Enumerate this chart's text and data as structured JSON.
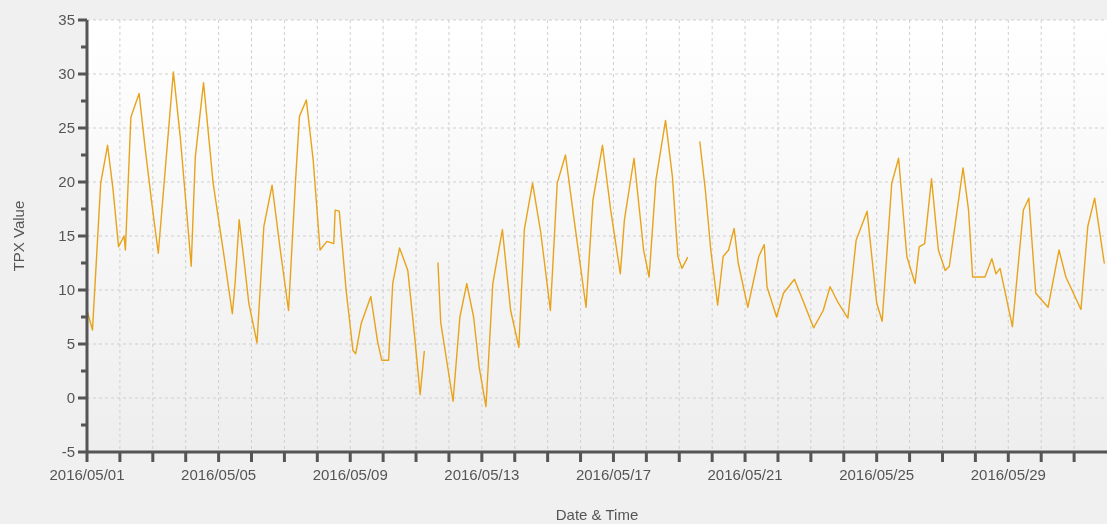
{
  "chart_data": {
    "type": "line",
    "xlabel": "Date & Time",
    "ylabel": "TPX Value",
    "xlim": [
      "2016-05-01",
      "2016-06-01"
    ],
    "xticks": [
      {
        "value": "2016-05-01",
        "label": "2016/05/01"
      },
      {
        "value": "2016-05-02",
        "label": null
      },
      {
        "value": "2016-05-03",
        "label": null
      },
      {
        "value": "2016-05-04",
        "label": null
      },
      {
        "value": "2016-05-05",
        "label": "2016/05/05"
      },
      {
        "value": "2016-05-06",
        "label": null
      },
      {
        "value": "2016-05-07",
        "label": null
      },
      {
        "value": "2016-05-08",
        "label": null
      },
      {
        "value": "2016-05-09",
        "label": "2016/05/09"
      },
      {
        "value": "2016-05-10",
        "label": null
      },
      {
        "value": "2016-05-11",
        "label": null
      },
      {
        "value": "2016-05-12",
        "label": null
      },
      {
        "value": "2016-05-13",
        "label": "2016/05/13"
      },
      {
        "value": "2016-05-14",
        "label": null
      },
      {
        "value": "2016-05-15",
        "label": null
      },
      {
        "value": "2016-05-16",
        "label": null
      },
      {
        "value": "2016-05-17",
        "label": "2016/05/17"
      },
      {
        "value": "2016-05-18",
        "label": null
      },
      {
        "value": "2016-05-19",
        "label": null
      },
      {
        "value": "2016-05-20",
        "label": null
      },
      {
        "value": "2016-05-21",
        "label": "2016/05/21"
      },
      {
        "value": "2016-05-22",
        "label": null
      },
      {
        "value": "2016-05-23",
        "label": null
      },
      {
        "value": "2016-05-24",
        "label": null
      },
      {
        "value": "2016-05-25",
        "label": "2016/05/25"
      },
      {
        "value": "2016-05-26",
        "label": null
      },
      {
        "value": "2016-05-27",
        "label": null
      },
      {
        "value": "2016-05-28",
        "label": null
      },
      {
        "value": "2016-05-29",
        "label": "2016/05/29"
      },
      {
        "value": "2016-05-30",
        "label": null
      },
      {
        "value": "2016-05-31",
        "label": null
      }
    ],
    "ylim": [
      -5,
      35
    ],
    "yticks": [
      -5,
      {
        "value": -2.5,
        "label": null
      },
      0,
      {
        "value": 2.5,
        "label": null
      },
      5,
      {
        "value": 7.5,
        "label": null
      },
      10,
      {
        "value": 12.5,
        "label": null
      },
      15,
      {
        "value": 17.5,
        "label": null
      },
      20,
      {
        "value": 22.5,
        "label": null
      },
      25,
      {
        "value": 27.5,
        "label": null
      },
      30,
      {
        "value": 32.5,
        "label": null
      },
      35
    ],
    "grid": true,
    "line_style": "solid",
    "marker": "none",
    "x": [
      "2016-05-01T00:00",
      "2016-05-01T04:00",
      "2016-05-01T10:00",
      "2016-05-01T15:00",
      "2016-05-01T19:00",
      "2016-05-01T23:00",
      "2016-05-02T03:00",
      "2016-05-02T04:00",
      "2016-05-02T08:00",
      "2016-05-02T14:00",
      "2016-05-02T18:00",
      "2016-05-02T23:00",
      "2016-05-03T04:00",
      "2016-05-03T15:00",
      "2016-05-03T20:00",
      "2016-05-04T01:00",
      "2016-05-04T04:00",
      "2016-05-04T07:00",
      "2016-05-04T13:00",
      "2016-05-04T20:00",
      "2016-05-05T04:00",
      "2016-05-05T10:00",
      "2016-05-05T12:00",
      "2016-05-05T15:00",
      "2016-05-05T19:00",
      "2016-05-05T22:00",
      "2016-05-06T04:00",
      "2016-05-06T09:00",
      "2016-05-06T15:00",
      "2016-05-06T21:00",
      "2016-05-07T03:00",
      "2016-05-07T08:00",
      "2016-05-07T11:00",
      "2016-05-07T16:00",
      "2016-05-07T21:00",
      "2016-05-08T02:00",
      "2016-05-08T07:00",
      "2016-05-08T12:00",
      "2016-05-08T13:00",
      "2016-05-08T16:00",
      "2016-05-08T21:00",
      "2016-05-09T02:00",
      "2016-05-09T04:00",
      "2016-05-09T08:00",
      "2016-05-09T15:00",
      "2016-05-09T20:00",
      "2016-05-09T23:00",
      "2016-05-10T04:00",
      "2016-05-10T07:00",
      "2016-05-10T12:00",
      "2016-05-10T18:00",
      "2016-05-10T23:00",
      "2016-05-11T03:00",
      "2016-05-11T06:00",
      "2016-05-11T10:00",
      "2016-05-11T16:00",
      "2016-05-11T18:00",
      "2016-05-12T03:00",
      "2016-05-12T08:00",
      "2016-05-12T13:00",
      "2016-05-12T18:00",
      "2016-05-12T22:00",
      "2016-05-13T03:00",
      "2016-05-13T08:00",
      "2016-05-13T15:00",
      "2016-05-13T19:00",
      "2016-05-13T21:00",
      "2016-05-14T03:00",
      "2016-05-14T07:00",
      "2016-05-14T13:00",
      "2016-05-14T19:00",
      "2016-05-15T02:00",
      "2016-05-15T07:00",
      "2016-05-15T13:00",
      "2016-05-15T19:00",
      "2016-05-16T04:00",
      "2016-05-16T09:00",
      "2016-05-16T16:00",
      "2016-05-16T22:00",
      "2016-05-17T05:00",
      "2016-05-17T08:00",
      "2016-05-17T15:00",
      "2016-05-17T22:00",
      "2016-05-18T02:00",
      "2016-05-18T07:00",
      "2016-05-18T14:00",
      "2016-05-18T19:00",
      "2016-05-18T23:00",
      "2016-05-19T02:00",
      "2016-05-19T06:00",
      "2016-05-19T10:00",
      "2016-05-19T15:00",
      "2016-05-19T19:00",
      "2016-05-19T23:00",
      "2016-05-20T04:00",
      "2016-05-20T08:00",
      "2016-05-20T12:00",
      "2016-05-20T16:00",
      "2016-05-20T19:00",
      "2016-05-21T02:00",
      "2016-05-21T10:00",
      "2016-05-21T14:00",
      "2016-05-21T16:00",
      "2016-05-21T23:00",
      "2016-05-22T04:00",
      "2016-05-22T12:00",
      "2016-05-22T18:00",
      "2016-05-23T02:00",
      "2016-05-23T09:00",
      "2016-05-23T14:00",
      "2016-05-23T20:00",
      "2016-05-24T03:00",
      "2016-05-24T09:00",
      "2016-05-24T17:00",
      "2016-05-25T00:00",
      "2016-05-25T04:00",
      "2016-05-25T11:00",
      "2016-05-25T16:00",
      "2016-05-25T22:00",
      "2016-05-26T04:00",
      "2016-05-26T07:00",
      "2016-05-26T11:00",
      "2016-05-26T16:00",
      "2016-05-26T21:00",
      "2016-05-27T02:00",
      "2016-05-27T05:00",
      "2016-05-27T15:00",
      "2016-05-27T19:00",
      "2016-05-27T22:00",
      "2016-05-28T07:00",
      "2016-05-28T12:00",
      "2016-05-28T15:00",
      "2016-05-28T18:00",
      "2016-05-29T03:00",
      "2016-05-29T11:00",
      "2016-05-29T15:00",
      "2016-05-29T20:00",
      "2016-05-30T05:00",
      "2016-05-30T13:00",
      "2016-05-30T18:00",
      "2016-05-31T05:00",
      "2016-05-31T10:00",
      "2016-05-31T15:00",
      "2016-05-31T22:00"
    ],
    "series": [
      {
        "color": "#e8a31a",
        "values": [
          8.1,
          6.3,
          19.9,
          23.4,
          19.3,
          14,
          15,
          13.7,
          26,
          28.2,
          23.6,
          18.3,
          13.4,
          30.2,
          24.2,
          16.8,
          12.2,
          22.3,
          29.2,
          19.9,
          13.1,
          7.8,
          10.6,
          16.5,
          12.2,
          8.8,
          5.1,
          15.9,
          19.7,
          13.7,
          8.1,
          19.9,
          26.1,
          27.6,
          22,
          13.7,
          14.5,
          14.3,
          17.4,
          17.3,
          10,
          4.4,
          4.1,
          6.9,
          9.4,
          5.2,
          3.5,
          3.5,
          10.6,
          13.9,
          11.8,
          5.7,
          0.3,
          4.3,
          null,
          12.5,
          7,
          -0.3,
          7.5,
          10.6,
          7.5,
          2.9,
          -0.8,
          10.6,
          15.6,
          10.6,
          8.1,
          4.7,
          15.6,
          19.9,
          15.3,
          8.1,
          19.9,
          22.5,
          16.8,
          8.4,
          18.3,
          23.4,
          17.4,
          11.5,
          16.5,
          22.2,
          13.7,
          11.2,
          20.2,
          25.7,
          20.5,
          13.1,
          12,
          13,
          null,
          23.7,
          19.3,
          13.7,
          8.6,
          13.1,
          13.7,
          15.7,
          12.5,
          8.4,
          13.1,
          14.2,
          10.3,
          7.5,
          9.7,
          11,
          9.1,
          6.5,
          8.1,
          10.3,
          8.8,
          7.4,
          14.6,
          17.3,
          8.8,
          7.1,
          19.9,
          22.2,
          13.1,
          10.6,
          14,
          14.3,
          20.3,
          13.7,
          11.8,
          12.2,
          21.3,
          17.4,
          11.2,
          11.2,
          12.9,
          11.5,
          12,
          6.6,
          17.4,
          18.5,
          9.7,
          8.4,
          13.7,
          11.2,
          8.2,
          15.9,
          18.5,
          12.5
        ]
      }
    ]
  }
}
